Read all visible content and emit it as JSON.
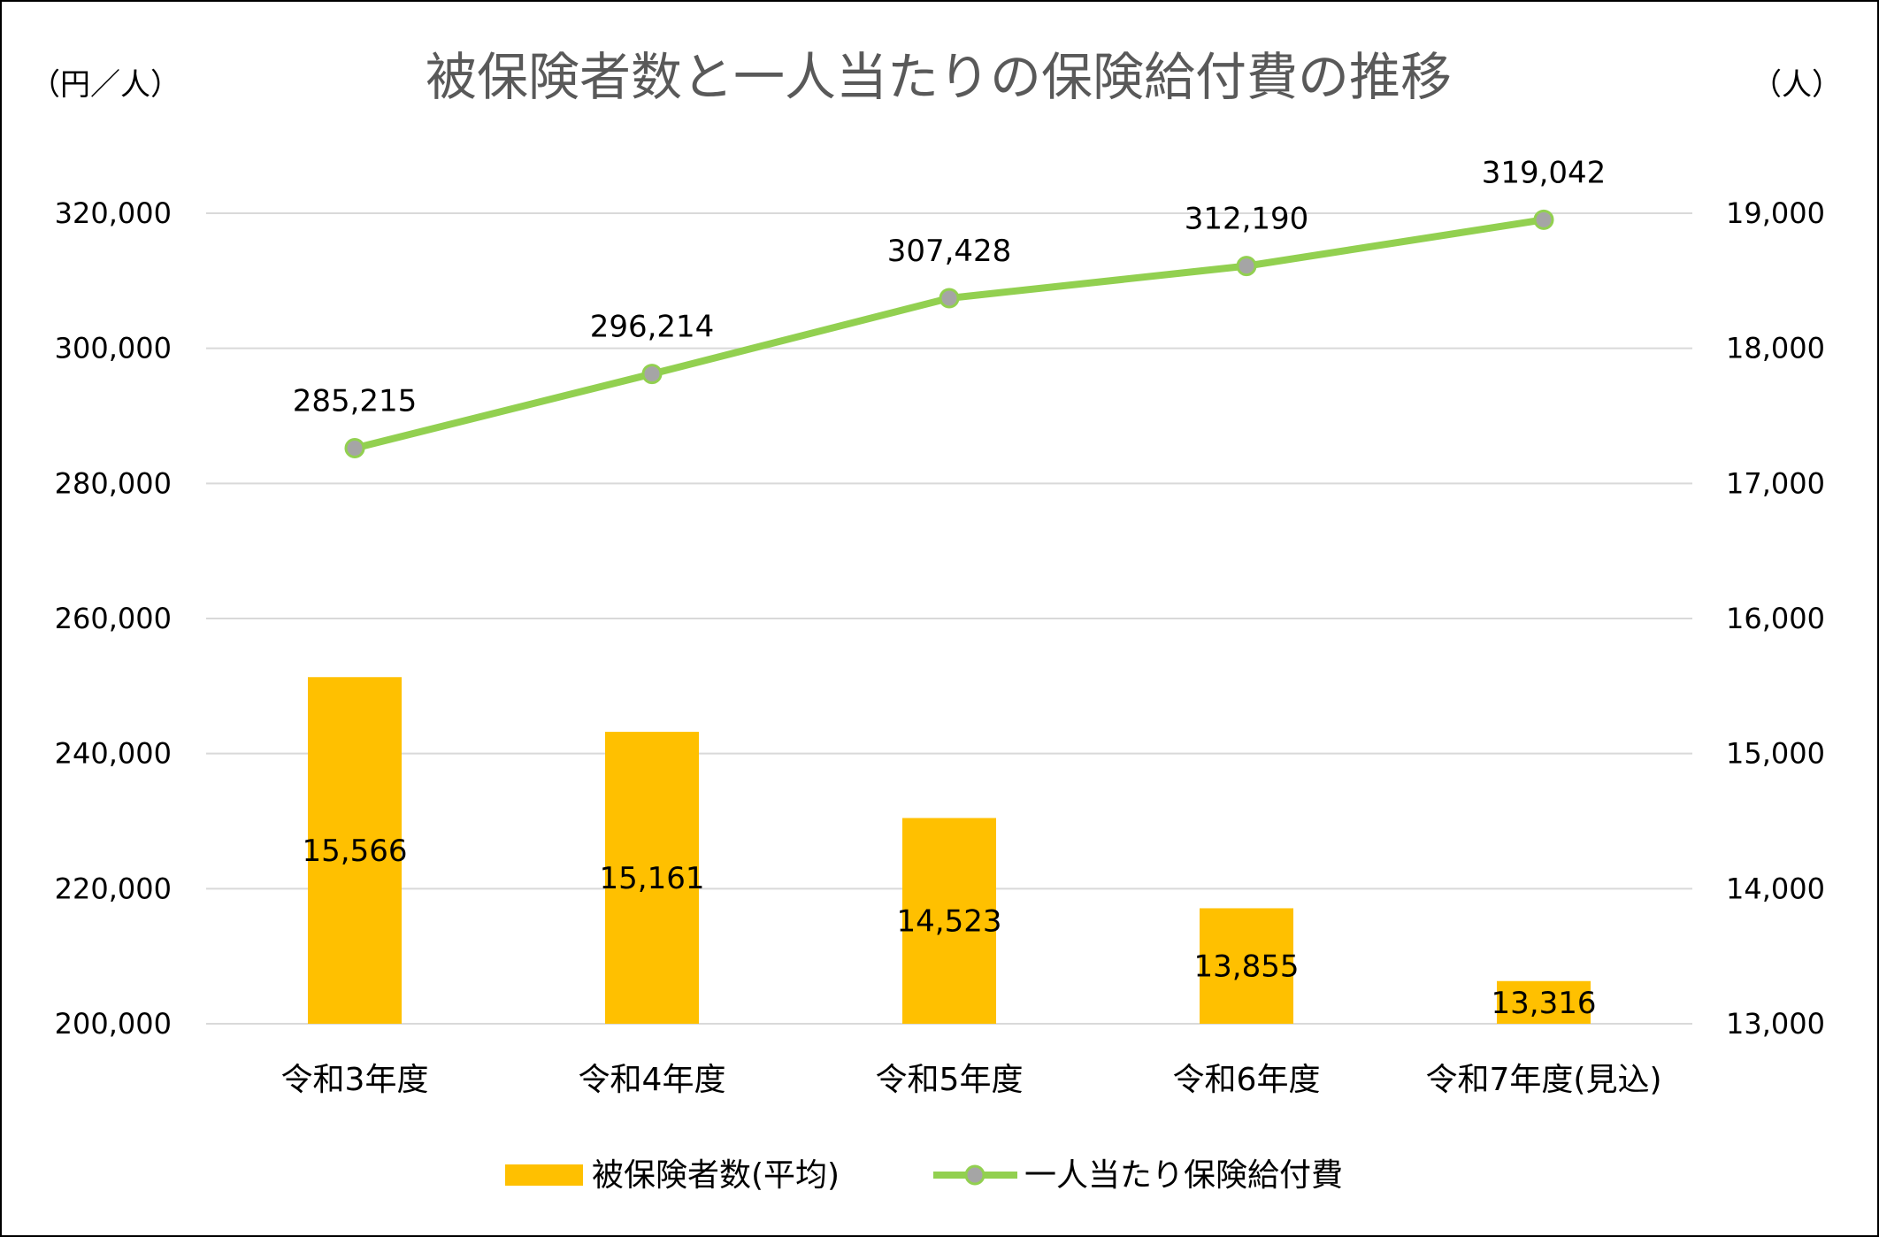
{
  "chart_data": {
    "type": "bar+line",
    "title": "被保険者数と一人当たりの保険給付費の推移",
    "left_unit": "（円／人）",
    "right_unit": "（人）",
    "categories": [
      "令和3年度",
      "令和4年度",
      "令和5年度",
      "令和6年度",
      "令和7年度(見込)"
    ],
    "left_axis": {
      "min": 200000,
      "max": 320000,
      "ticks": [
        "200,000",
        "220,000",
        "240,000",
        "260,000",
        "280,000",
        "300,000",
        "320,000"
      ],
      "tick_values": [
        200000,
        220000,
        240000,
        260000,
        280000,
        300000,
        320000
      ]
    },
    "right_axis": {
      "min": 13000,
      "max": 19000,
      "ticks": [
        "13,000",
        "14,000",
        "15,000",
        "16,000",
        "17,000",
        "18,000",
        "19,000"
      ],
      "tick_values": [
        13000,
        14000,
        15000,
        16000,
        17000,
        18000,
        19000
      ]
    },
    "grid": true,
    "legend_position": "bottom",
    "series": [
      {
        "name": "被保険者数(平均)",
        "type": "bar",
        "axis": "right",
        "color": "#FFC000",
        "values": [
          15566,
          15161,
          14523,
          13855,
          13316
        ],
        "labels": [
          "15,566",
          "15,161",
          "14,523",
          "13,855",
          "13,316"
        ]
      },
      {
        "name": "一人当たり保険給付費",
        "type": "line",
        "axis": "left",
        "color": "#92D050",
        "marker_color": "#A5A5A5",
        "values": [
          285215,
          296214,
          307428,
          312190,
          319042
        ],
        "labels": [
          "285,215",
          "296,214",
          "307,428",
          "312,190",
          "319,042"
        ]
      }
    ]
  }
}
